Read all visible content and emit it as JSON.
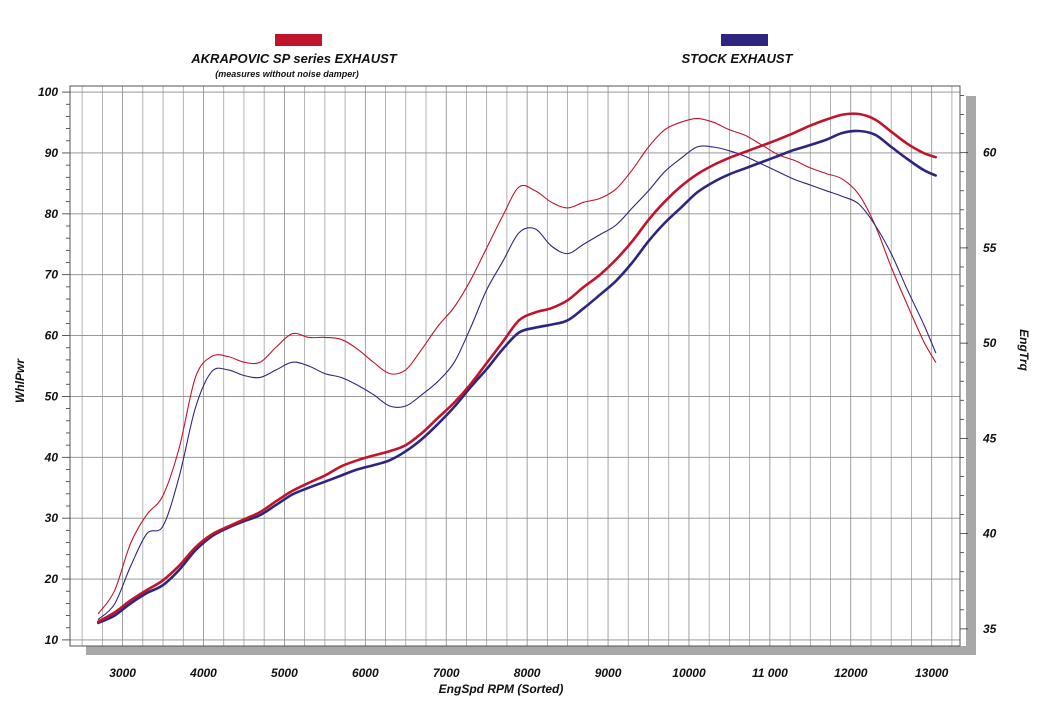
{
  "chart_data": {
    "type": "line",
    "xlabel": "EngSpd RPM (Sorted)",
    "ylabel": "WhlPwr",
    "y2label": "EngTrq",
    "xlim": [
      2350,
      13350
    ],
    "ylim": [
      9,
      101
    ],
    "y2lim": [
      34.1,
      63.5
    ],
    "x_ticks": [
      3000,
      4000,
      5000,
      6000,
      7000,
      8000,
      9000,
      10000,
      11000,
      12000,
      13000
    ],
    "x_tick_labels": [
      "3000",
      "4000",
      "5000",
      "6000",
      "7000",
      "8000",
      "9000",
      "10000",
      "11 000",
      "12000",
      "13000"
    ],
    "y_ticks": [
      10,
      20,
      30,
      40,
      50,
      60,
      70,
      80,
      90,
      100
    ],
    "y_tick_labels": [
      "10",
      "20",
      "30",
      "40",
      "50",
      "60",
      "70",
      "80",
      "90",
      "100"
    ],
    "y2_ticks": [
      35,
      40,
      45,
      50,
      55,
      60
    ],
    "y2_tick_labels": [
      "35",
      "40",
      "45",
      "50",
      "55",
      "60"
    ],
    "grid": true,
    "legend_placement": "top",
    "legend": [
      {
        "label": "AKRAPOVIC SP series EXHAUST",
        "sublabel": "(measures without noise damper)",
        "color": "#c0142c"
      },
      {
        "label": "STOCK EXHAUST",
        "sublabel": "",
        "color": "#2d2680"
      }
    ],
    "series": [
      {
        "legend_index": 0,
        "quantity": "power",
        "axis": "left",
        "color": "#c0142c",
        "x": [
          2700,
          2900,
          3100,
          3300,
          3500,
          3700,
          3900,
          4100,
          4300,
          4500,
          4700,
          4900,
          5100,
          5300,
          5500,
          5700,
          5900,
          6100,
          6300,
          6500,
          6700,
          6900,
          7100,
          7300,
          7500,
          7700,
          7900,
          8100,
          8300,
          8500,
          8700,
          8900,
          9100,
          9300,
          9500,
          9700,
          9900,
          10100,
          10300,
          10500,
          10700,
          10900,
          11100,
          11300,
          11500,
          11700,
          11900,
          12100,
          12300,
          12500,
          12700,
          12900,
          13050
        ],
        "y": [
          13,
          14.5,
          16.5,
          18.2,
          19.8,
          22.2,
          25.2,
          27.3,
          28.6,
          29.8,
          31,
          32.8,
          34.5,
          35.8,
          37,
          38.5,
          39.5,
          40.3,
          41,
          42,
          44,
          46.5,
          49,
          52,
          55.5,
          59,
          62.5,
          63.8,
          64.5,
          65.8,
          68,
          70,
          72.5,
          75.5,
          79,
          82,
          84.5,
          86.5,
          88,
          89.2,
          90.2,
          91.2,
          92.2,
          93.3,
          94.5,
          95.5,
          96.3,
          96.4,
          95.5,
          93.5,
          91.5,
          90,
          89.3
        ]
      },
      {
        "legend_index": 1,
        "quantity": "power",
        "axis": "left",
        "color": "#2d2680",
        "x": [
          2700,
          2900,
          3100,
          3300,
          3500,
          3700,
          3900,
          4100,
          4300,
          4500,
          4700,
          4900,
          5100,
          5300,
          5500,
          5700,
          5900,
          6100,
          6300,
          6500,
          6700,
          6900,
          7100,
          7300,
          7500,
          7700,
          7900,
          8100,
          8300,
          8500,
          8700,
          8900,
          9100,
          9300,
          9500,
          9700,
          9900,
          10100,
          10300,
          10500,
          10700,
          10900,
          11100,
          11300,
          11500,
          11700,
          11900,
          12100,
          12300,
          12500,
          12700,
          12900,
          13050
        ],
        "y": [
          12.8,
          14,
          16,
          17.7,
          19,
          21.5,
          24.7,
          27,
          28.4,
          29.5,
          30.5,
          32.2,
          33.9,
          35,
          36,
          37,
          38,
          38.7,
          39.5,
          41,
          43,
          45.5,
          48.3,
          51.5,
          54.5,
          57.8,
          60.5,
          61.3,
          61.8,
          62.5,
          64.5,
          66.7,
          69,
          72,
          75.5,
          78.5,
          81,
          83.5,
          85.2,
          86.5,
          87.5,
          88.5,
          89.5,
          90.5,
          91.3,
          92.2,
          93.3,
          93.6,
          93,
          91,
          89,
          87.2,
          86.3
        ]
      },
      {
        "legend_index": 0,
        "quantity": "torque",
        "axis": "right",
        "color": "#c0142c",
        "x": [
          2700,
          2900,
          3100,
          3300,
          3500,
          3700,
          3900,
          4100,
          4300,
          4500,
          4700,
          4900,
          5100,
          5300,
          5500,
          5700,
          5900,
          6100,
          6300,
          6500,
          6700,
          6900,
          7100,
          7300,
          7500,
          7700,
          7900,
          8100,
          8300,
          8500,
          8700,
          8900,
          9100,
          9300,
          9500,
          9700,
          9900,
          10100,
          10300,
          10500,
          10700,
          10900,
          11100,
          11300,
          11500,
          11700,
          11900,
          12100,
          12300,
          12500,
          12700,
          12900,
          13050
        ],
        "y": [
          35.8,
          37,
          39.5,
          41,
          42,
          44.5,
          48.2,
          49.3,
          49.3,
          49,
          49,
          49.8,
          50.5,
          50.3,
          50.3,
          50.2,
          49.7,
          49,
          48.4,
          48.6,
          49.7,
          50.9,
          51.9,
          53.3,
          55,
          56.7,
          58.2,
          58,
          57.4,
          57.1,
          57.4,
          57.6,
          58.1,
          59.1,
          60.3,
          61.2,
          61.6,
          61.8,
          61.6,
          61.2,
          60.9,
          60.4,
          59.9,
          59.6,
          59.2,
          58.9,
          58.6,
          57.8,
          56.2,
          54,
          52,
          50.1,
          49
        ]
      },
      {
        "legend_index": 1,
        "quantity": "torque",
        "axis": "right",
        "color": "#2d2680",
        "x": [
          2700,
          2900,
          3100,
          3300,
          3500,
          3700,
          3900,
          4100,
          4300,
          4500,
          4700,
          4900,
          5100,
          5300,
          5500,
          5700,
          5900,
          6100,
          6300,
          6500,
          6700,
          6900,
          7100,
          7300,
          7500,
          7700,
          7900,
          8100,
          8300,
          8500,
          8700,
          8900,
          9100,
          9300,
          9500,
          9700,
          9900,
          10100,
          10300,
          10500,
          10700,
          10900,
          11100,
          11300,
          11500,
          11700,
          11900,
          12100,
          12300,
          12500,
          12700,
          12900,
          13050
        ],
        "y": [
          35.5,
          36.3,
          38.3,
          40,
          40.4,
          43,
          46.6,
          48.5,
          48.6,
          48.3,
          48.2,
          48.6,
          49,
          48.8,
          48.4,
          48.2,
          47.8,
          47.3,
          46.7,
          46.7,
          47.3,
          48,
          49,
          50.8,
          52.8,
          54.3,
          55.8,
          56,
          55.1,
          54.7,
          55.2,
          55.7,
          56.2,
          57.1,
          58,
          59,
          59.7,
          60.3,
          60.3,
          60.1,
          59.8,
          59.4,
          59,
          58.6,
          58.3,
          58,
          57.7,
          57.3,
          56.2,
          54.7,
          52.8,
          51,
          49.5
        ]
      }
    ]
  }
}
